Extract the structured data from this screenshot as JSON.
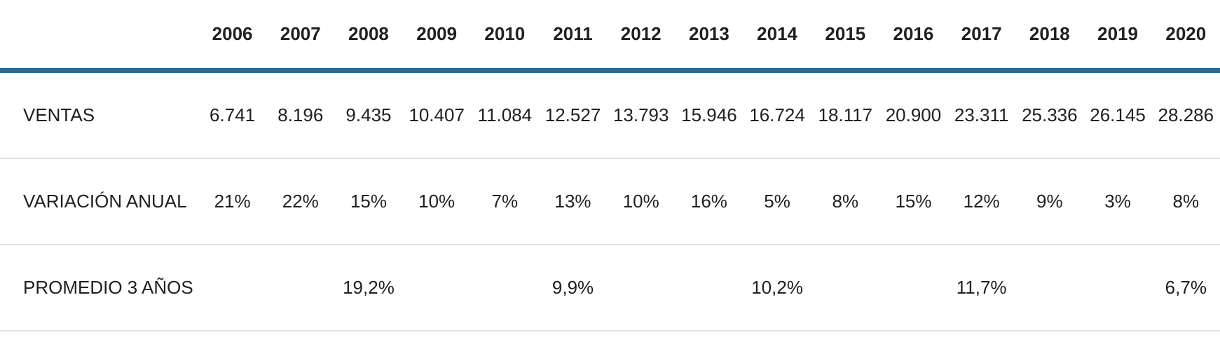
{
  "table": {
    "years": [
      "2006",
      "2007",
      "2008",
      "2009",
      "2010",
      "2011",
      "2012",
      "2013",
      "2014",
      "2015",
      "2016",
      "2017",
      "2018",
      "2019",
      "2020"
    ],
    "rows": [
      {
        "label": "VENTAS",
        "values": [
          "6.741",
          "8.196",
          "9.435",
          "10.407",
          "11.084",
          "12.527",
          "13.793",
          "15.946",
          "16.724",
          "18.117",
          "20.900",
          "23.311",
          "25.336",
          "26.145",
          "28.286"
        ]
      },
      {
        "label": "VARIACIÓN ANUAL",
        "values": [
          "21%",
          "22%",
          "15%",
          "10%",
          "7%",
          "13%",
          "10%",
          "16%",
          "5%",
          "8%",
          "15%",
          "12%",
          "9%",
          "3%",
          "8%"
        ]
      },
      {
        "label": "PROMEDIO 3 AÑOS",
        "values": [
          "",
          "",
          "19,2%",
          "",
          "",
          "9,9%",
          "",
          "",
          "10,2%",
          "",
          "",
          "11,7%",
          "",
          "",
          "6,7%"
        ]
      }
    ]
  },
  "colors": {
    "header_rule_blue": "#2d6996",
    "row_divider_gray": "#e0e0e0",
    "text": "#202020"
  },
  "chart_data": {
    "type": "table",
    "title": "",
    "columns": [
      "",
      "2006",
      "2007",
      "2008",
      "2009",
      "2010",
      "2011",
      "2012",
      "2013",
      "2014",
      "2015",
      "2016",
      "2017",
      "2018",
      "2019",
      "2020"
    ],
    "rows": [
      [
        "VENTAS",
        "6.741",
        "8.196",
        "9.435",
        "10.407",
        "11.084",
        "12.527",
        "13.793",
        "15.946",
        "16.724",
        "18.117",
        "20.900",
        "23.311",
        "25.336",
        "26.145",
        "28.286"
      ],
      [
        "VARIACIÓN ANUAL",
        "21%",
        "22%",
        "15%",
        "10%",
        "7%",
        "13%",
        "10%",
        "16%",
        "5%",
        "8%",
        "15%",
        "12%",
        "9%",
        "3%",
        "8%"
      ],
      [
        "PROMEDIO 3 AÑOS",
        "",
        "",
        "19,2%",
        "",
        "",
        "9,9%",
        "",
        "",
        "10,2%",
        "",
        "",
        "11,7%",
        "",
        "",
        "6,7%"
      ]
    ],
    "numeric": {
      "x": [
        2006,
        2007,
        2008,
        2009,
        2010,
        2011,
        2012,
        2013,
        2014,
        2015,
        2016,
        2017,
        2018,
        2019,
        2020
      ],
      "series": [
        {
          "name": "VENTAS",
          "values": [
            6741,
            8196,
            9435,
            10407,
            11084,
            12527,
            13793,
            15946,
            16724,
            18117,
            20900,
            23311,
            25336,
            26145,
            28286
          ]
        },
        {
          "name": "VARIACIÓN ANUAL (%)",
          "values": [
            21,
            22,
            15,
            10,
            7,
            13,
            10,
            16,
            5,
            8,
            15,
            12,
            9,
            3,
            8
          ]
        },
        {
          "name": "PROMEDIO 3 AÑOS (%)",
          "values": [
            null,
            null,
            19.2,
            null,
            null,
            9.9,
            null,
            null,
            10.2,
            null,
            null,
            11.7,
            null,
            null,
            6.7
          ]
        }
      ]
    },
    "layout": {
      "grid": "horizontal-row-dividers",
      "header_rule_color": "#2d6996",
      "value_alignment": "center"
    }
  }
}
